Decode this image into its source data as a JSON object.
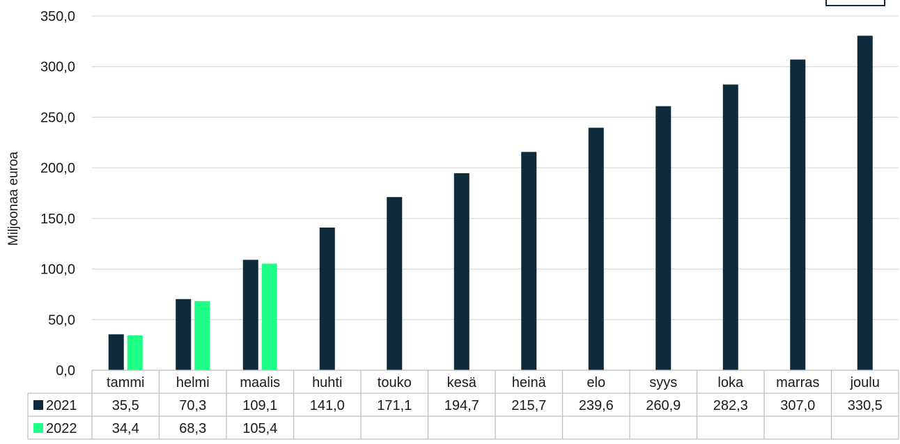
{
  "colors": {
    "2021": "#0f2a3a",
    "2022": "#1eff86"
  },
  "chart_data": {
    "type": "bar",
    "ylabel": "Miljoonaa euroa",
    "ylim": [
      0,
      350
    ],
    "yticks": [
      "0,0",
      "50,0",
      "100,0",
      "150,0",
      "200,0",
      "250,0",
      "300,0",
      "350,0"
    ],
    "grid": true,
    "legend": "data-table",
    "categories": [
      "tammi",
      "helmi",
      "maalis",
      "huhti",
      "touko",
      "kesä",
      "heinä",
      "elo",
      "syys",
      "loka",
      "marras",
      "joulu"
    ],
    "series": [
      {
        "name": "2021",
        "values": [
          35.5,
          70.3,
          109.1,
          141.0,
          171.1,
          194.7,
          215.7,
          239.6,
          260.9,
          282.3,
          307.0,
          330.5
        ],
        "labels": [
          "35,5",
          "70,3",
          "109,1",
          "141,0",
          "171,1",
          "194,7",
          "215,7",
          "239,6",
          "260,9",
          "282,3",
          "307,0",
          "330,5"
        ]
      },
      {
        "name": "2022",
        "values": [
          34.4,
          68.3,
          105.4,
          null,
          null,
          null,
          null,
          null,
          null,
          null,
          null,
          null
        ],
        "labels": [
          "34,4",
          "68,3",
          "105,4",
          "",
          "",
          "",
          "",
          "",
          "",
          "",
          "",
          ""
        ]
      }
    ]
  }
}
